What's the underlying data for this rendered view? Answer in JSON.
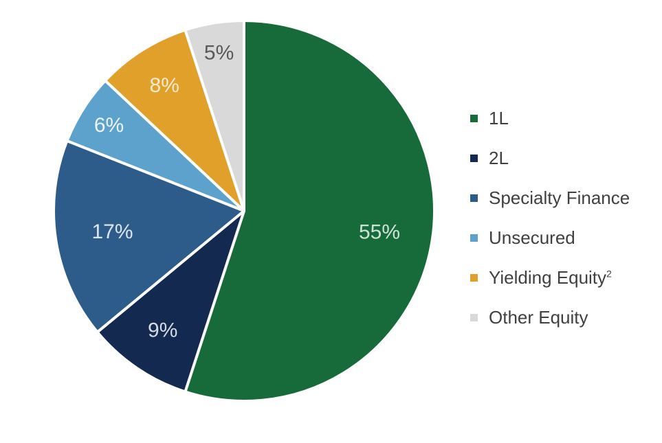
{
  "chart_data": {
    "type": "pie",
    "title": "",
    "slices": [
      {
        "name": "1L",
        "value": 55,
        "label": "55%",
        "color": "#176b3a",
        "label_color": "#cfe3d5"
      },
      {
        "name": "2L",
        "value": 9,
        "label": "9%",
        "color": "#13294f",
        "label_color": "#d6dbe5"
      },
      {
        "name": "Specialty Finance",
        "value": 17,
        "label": "17%",
        "color": "#2d5c8a",
        "label_color": "#dce5ef"
      },
      {
        "name": "Unsecured",
        "value": 6,
        "label": "6%",
        "color": "#5da1cd",
        "label_color": "#eef5fa"
      },
      {
        "name": "Yielding Equity",
        "superscript": "2",
        "value": 8,
        "label": "8%",
        "color": "#e0a02a",
        "label_color": "#fbecd0"
      },
      {
        "name": "Other Equity",
        "value": 5,
        "label": "5%",
        "color": "#d9d9d9",
        "label_color": "#595959"
      }
    ],
    "legend_position": "right"
  }
}
